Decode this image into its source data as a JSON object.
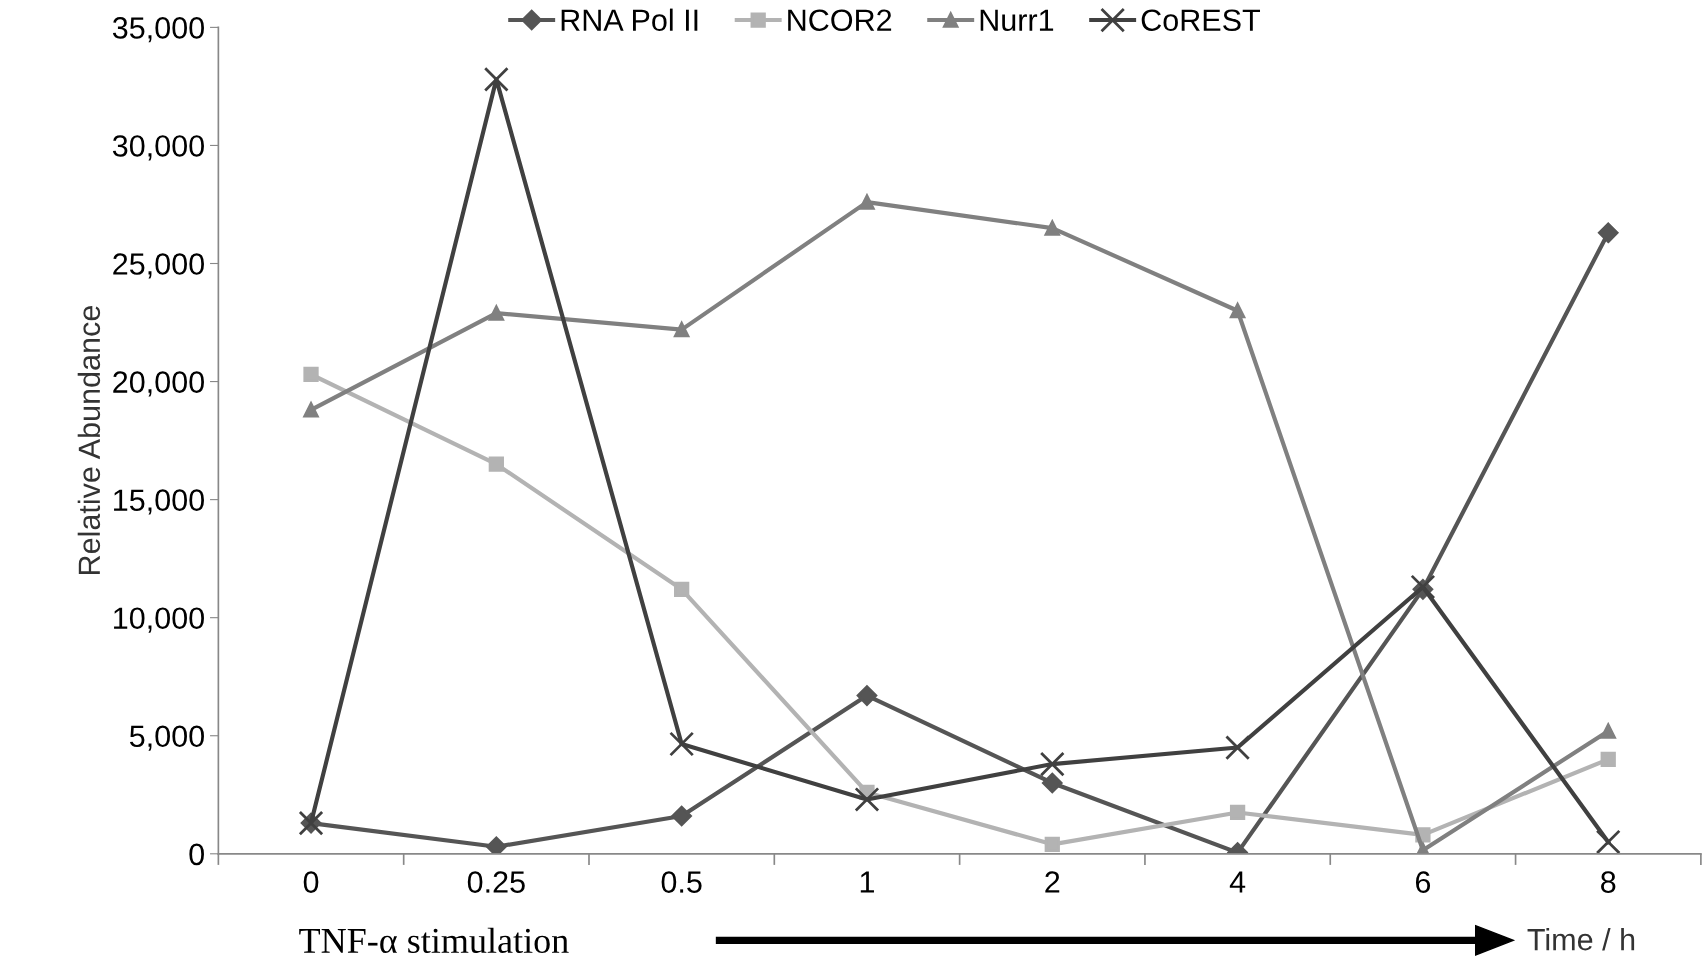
{
  "chart_data": {
    "type": "line",
    "xlabel": "Time / h",
    "ylabel": "Relative Abundance",
    "annotations": [
      "TNF-α stimulation"
    ],
    "categories": [
      "0",
      "0.25",
      "0.5",
      "1",
      "2",
      "4",
      "6",
      "8"
    ],
    "series": [
      {
        "name": "RNA Pol II",
        "color": "#555555",
        "marker": "diamond",
        "values": [
          1300,
          300,
          1600,
          6700,
          3000,
          50,
          11200,
          26300
        ]
      },
      {
        "name": "NCOR2",
        "color": "#b3b3b3",
        "marker": "square",
        "values": [
          20300,
          16500,
          11200,
          2600,
          400,
          1750,
          800,
          4000
        ]
      },
      {
        "name": "Nurr1",
        "color": "#808080",
        "marker": "triangle",
        "values": [
          18800,
          22900,
          22200,
          27600,
          26500,
          23000,
          150,
          5200
        ]
      },
      {
        "name": "CoREST",
        "color": "#404040",
        "marker": "cross",
        "values": [
          1300,
          32800,
          4650,
          2300,
          3800,
          4500,
          11300,
          500
        ]
      }
    ],
    "ylim": [
      0,
      35000
    ],
    "yticks": [
      0,
      {
        "value": 5000,
        "label": "5,000"
      },
      {
        "value": 10000,
        "label": "10,000"
      },
      {
        "value": 15000,
        "label": "15,000"
      },
      {
        "value": 20000,
        "label": "20,000"
      },
      {
        "value": 25000,
        "label": "25,000"
      },
      {
        "value": 30000,
        "label": "30,000"
      },
      {
        "value": 35000,
        "label": "35,000"
      }
    ],
    "grid": false,
    "legend": "top",
    "line_style": "solid"
  }
}
